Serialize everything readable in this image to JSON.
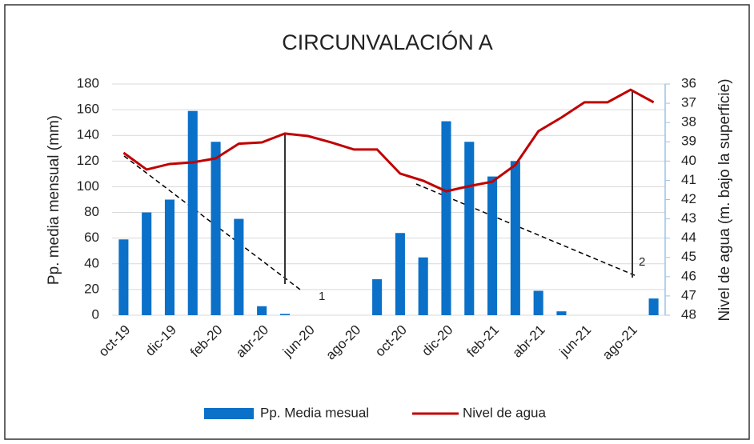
{
  "chart_data": {
    "type": "bar_line",
    "title": "CIRCUNVALACIÓN A",
    "y_label": "Pp. media mensual (mm)",
    "y2_label": "Nivel de agua (m. bajo la superficie)",
    "categories": [
      "oct-19",
      null,
      "dic-19",
      null,
      "feb-20",
      null,
      "abr-20",
      null,
      "jun-20",
      null,
      "ago-20",
      null,
      "oct-20",
      null,
      "dic-20",
      null,
      "feb-21",
      null,
      "abr-21",
      null,
      "jun-21",
      null,
      "ago-21",
      null
    ],
    "series": [
      {
        "name": "Pp. Media mesual",
        "type": "bar",
        "color": "#0a70c8",
        "values": [
          59,
          80,
          90,
          159,
          135,
          75,
          7,
          1,
          0,
          0,
          0,
          28,
          64,
          45,
          151,
          135,
          108,
          120,
          19,
          3,
          0,
          0,
          0,
          13
        ]
      },
      {
        "name": "Nivel de agua",
        "type": "line",
        "axis": "y2",
        "color": "#c00000",
        "values": [
          39.57,
          40.44,
          40.15,
          40.07,
          39.86,
          39.1,
          39.03,
          38.57,
          38.7,
          39.03,
          39.4,
          39.4,
          40.65,
          41.02,
          41.57,
          41.3,
          41.07,
          40.2,
          38.45,
          37.74,
          36.95,
          36.95,
          36.3,
          36.95
        ]
      }
    ],
    "ylim": [
      0,
      180
    ],
    "yticks": [
      0,
      20,
      40,
      60,
      80,
      100,
      120,
      140,
      160,
      180
    ],
    "y2lim": [
      48,
      36
    ],
    "y2ticks": [
      36,
      37,
      38,
      39,
      40,
      41,
      42,
      43,
      44,
      45,
      46,
      47,
      48
    ],
    "grid": true,
    "annotations": [
      "1",
      "2"
    ]
  }
}
